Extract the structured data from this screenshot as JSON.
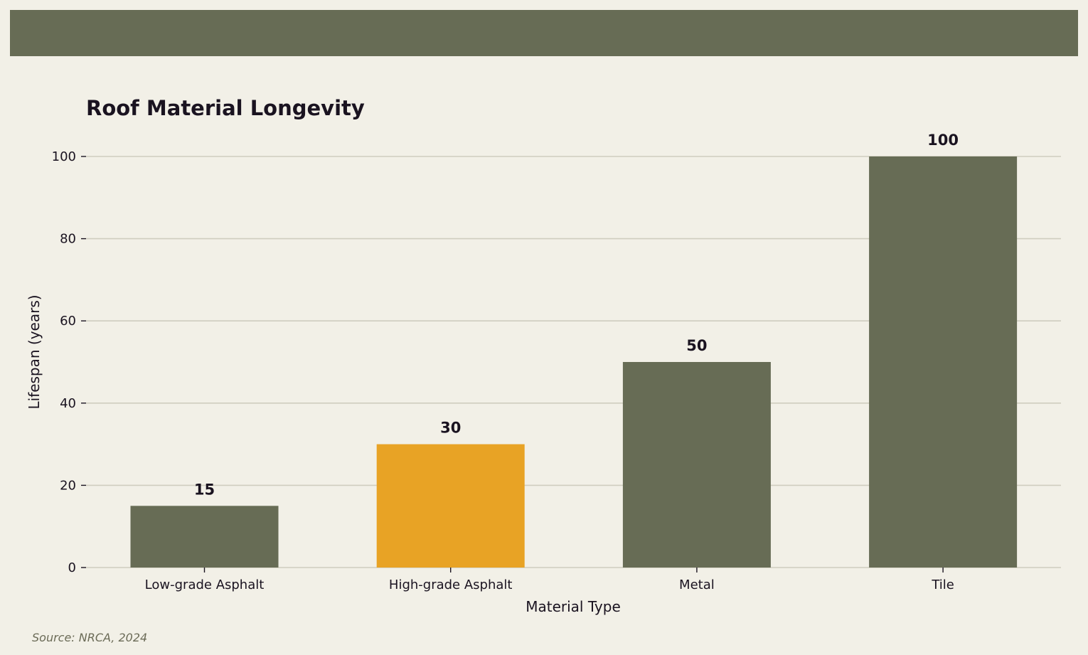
{
  "colors": {
    "background": "#f2f0e7",
    "banner": "#676c55",
    "bar_default": "#676c55",
    "bar_highlight": "#e8a325",
    "grid": "#cfcdbf",
    "text": "#1a1320",
    "source": "#6b6b57"
  },
  "source": "Source: NRCA, 2024",
  "chart_data": {
    "type": "bar",
    "title": "Roof Material Longevity",
    "xlabel": "Material Type",
    "ylabel": "Lifespan (years)",
    "categories": [
      "Low-grade Asphalt",
      "High-grade Asphalt",
      "Metal",
      "Tile"
    ],
    "values": [
      15,
      30,
      50,
      100
    ],
    "highlight_index": 1,
    "value_labels": [
      "15",
      "30",
      "50",
      "100"
    ],
    "ylim": [
      0,
      100
    ],
    "yticks": [
      0,
      20,
      40,
      60,
      80,
      100
    ],
    "ytick_labels": [
      "0",
      "20",
      "40",
      "60",
      "80",
      "100"
    ],
    "grid": true,
    "legend": "none"
  }
}
